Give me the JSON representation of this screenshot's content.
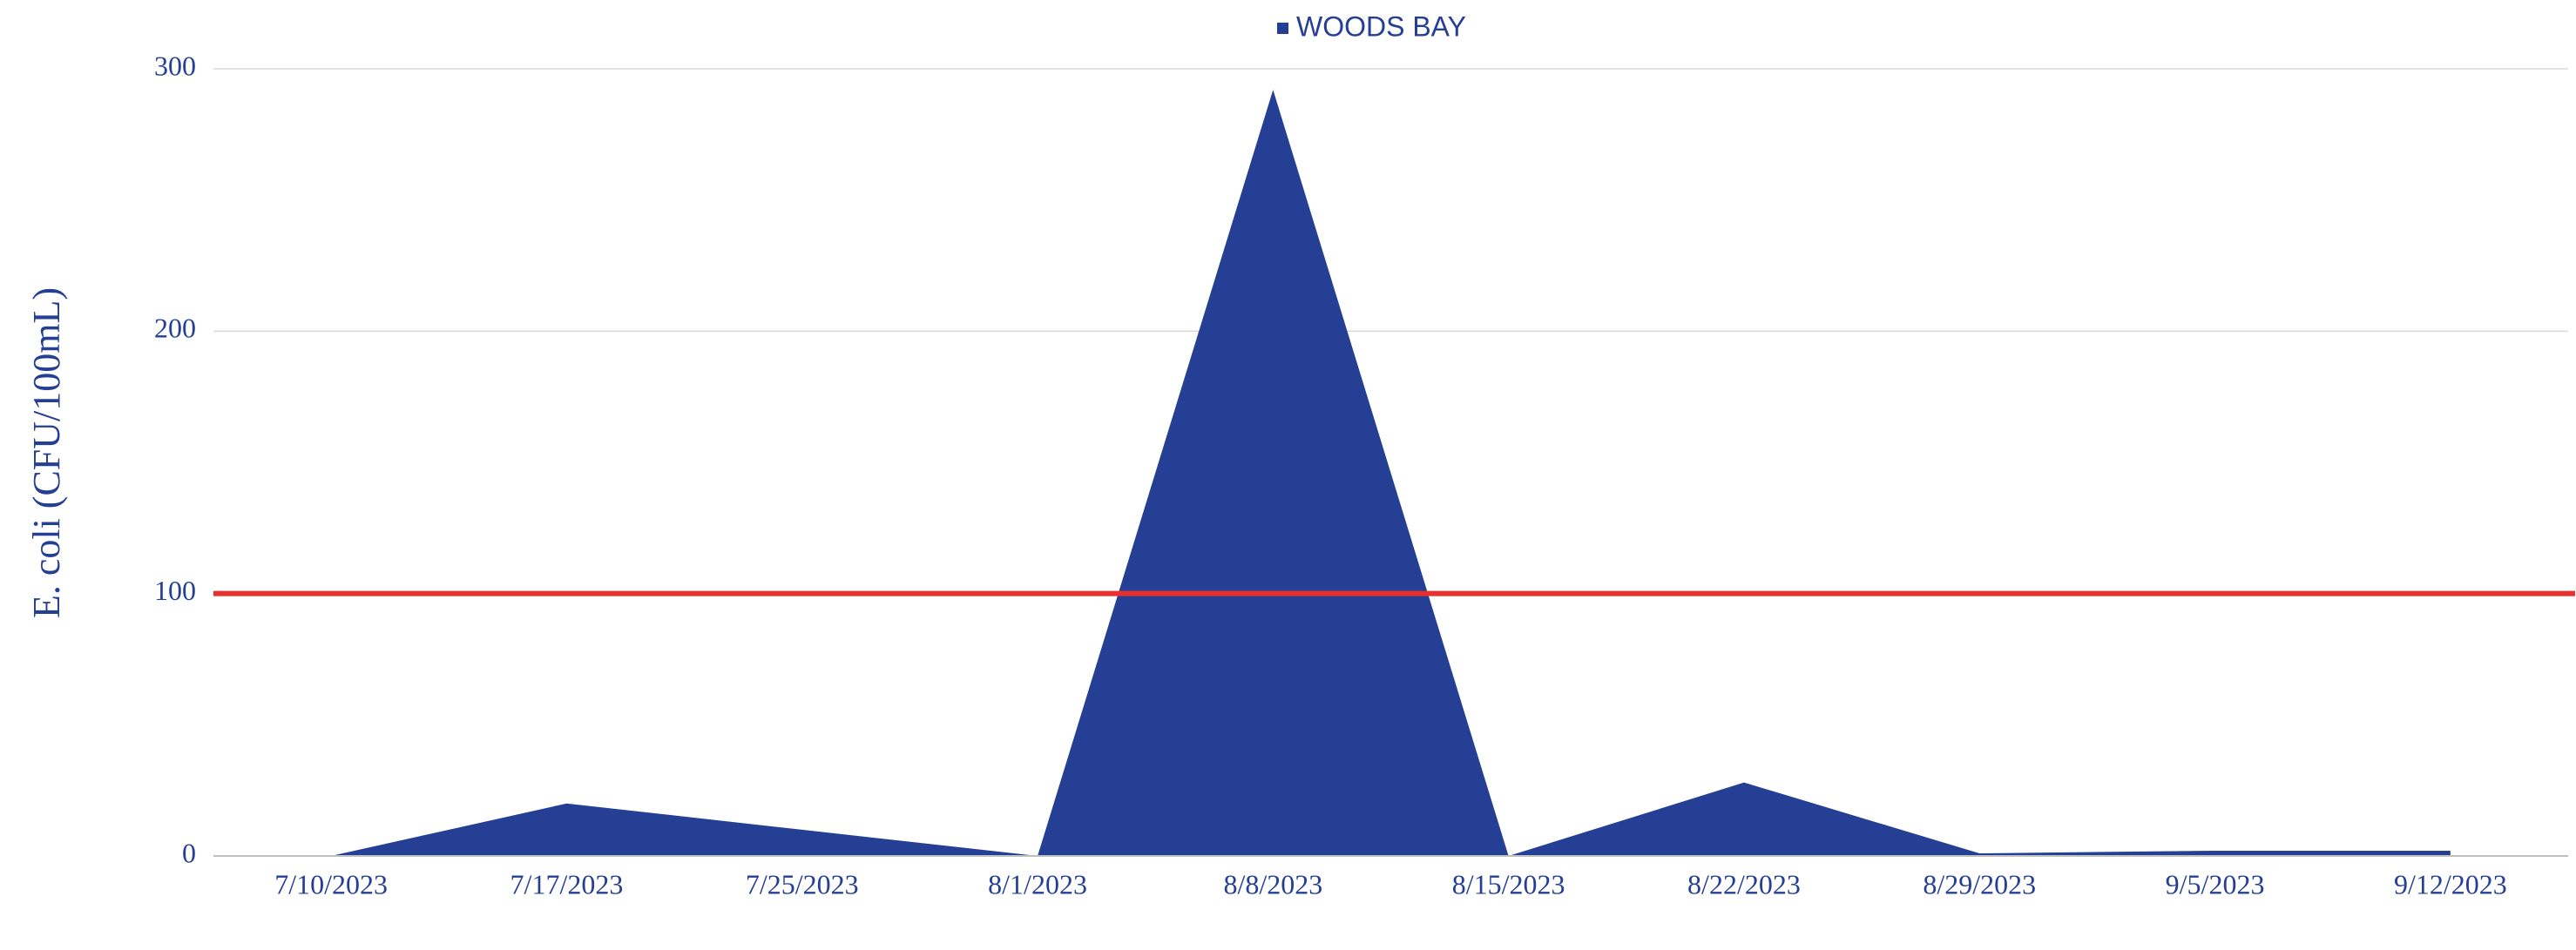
{
  "chart_data": {
    "type": "area",
    "y_label": "E. coli (CFU/100mL)",
    "categories": [
      "7/10/2023",
      "7/17/2023",
      "7/25/2023",
      "8/1/2023",
      "8/8/2023",
      "8/15/2023",
      "8/22/2023",
      "8/29/2023",
      "9/5/2023",
      "9/12/2023"
    ],
    "series": [
      {
        "name": "WOODS BAY",
        "color": "#253f94",
        "values": [
          0,
          20,
          10,
          0,
          292,
          0,
          28,
          1,
          2,
          2
        ]
      }
    ],
    "reference_line": {
      "value": 100,
      "color": "#e8312f"
    },
    "ylim": [
      0,
      300
    ],
    "yticks": [
      0,
      100,
      200,
      300
    ],
    "grid": true,
    "legend": "top"
  }
}
